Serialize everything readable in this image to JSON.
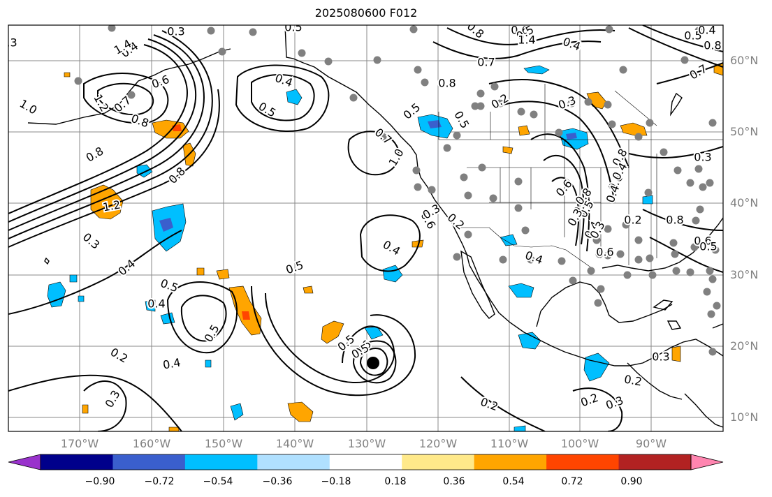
{
  "title": "2025080600 F012",
  "latitude_labels": [
    "60°N",
    "50°N",
    "40°N",
    "30°N",
    "20°N",
    "10°N"
  ],
  "longitude_labels": [
    "170°W",
    "160°W",
    "150°W",
    "140°W",
    "130°W",
    "120°W",
    "110°W",
    "100°W",
    "90°W"
  ],
  "colorbar": {
    "tick_labels": [
      "−0.90",
      "−0.72",
      "−0.54",
      "−0.36",
      "−0.18",
      "0.18",
      "0.36",
      "0.54",
      "0.72",
      "0.90"
    ],
    "colors": [
      "#9932cc",
      "#00008b",
      "#3a5fcd",
      "#00bfff",
      "#b0e0ff",
      "#ffffff",
      "#ffe98a",
      "#ffa500",
      "#ff4500",
      "#b22222",
      "#ff85b0"
    ]
  },
  "contour_labels": [
    "0.3",
    "0.4",
    "0.5",
    "0.6",
    "0.7",
    "0.8",
    "1.0",
    "1.2",
    "1.4",
    "0.2",
    "0.3",
    "0.5",
    "0.5",
    "0.4",
    "0.5",
    "0.6",
    "0.4",
    "0.5",
    "0.2",
    "0.2",
    "0.3",
    "0.2",
    "0.4",
    "0.5",
    "0.3",
    "0.8",
    "0.7",
    "0.5",
    "0.4",
    "0.6",
    "0.8",
    "0.5",
    "0.3",
    "0.8",
    "0.7",
    "0.6",
    "0.5",
    "0.4",
    "0.3",
    "0.2",
    "0.5",
    "0.4",
    "0.3",
    "0.8",
    "0.6",
    "0.4",
    "1.2",
    "1.4",
    "0.8",
    "0.7",
    "0.5",
    "0.4",
    "0.3",
    "0.2",
    "0.8",
    "0.7",
    "0.6",
    "0.5",
    "0.4",
    "0.3",
    "0.2",
    "0.8",
    "0.6",
    "1.0",
    "0.8",
    "0.4",
    "0.3",
    "0.6",
    "0.5",
    "0.3",
    "0.4"
  ]
}
